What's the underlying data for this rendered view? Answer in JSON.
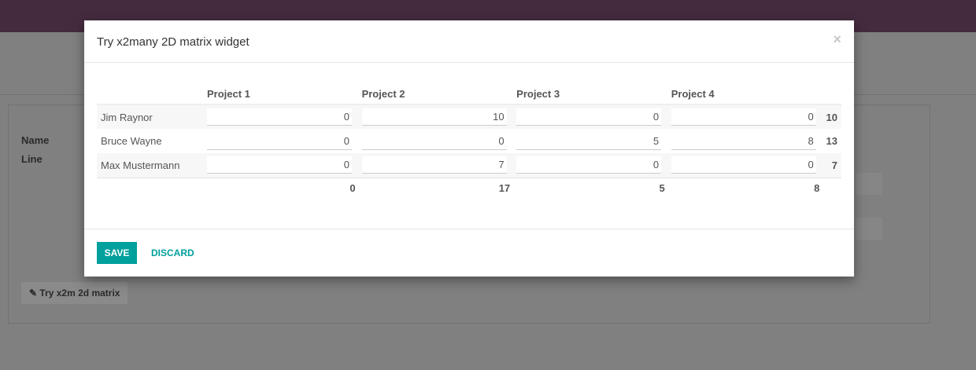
{
  "background": {
    "labels": [
      "Name",
      "Line"
    ],
    "button": "Try x2m 2d matrix"
  },
  "modal": {
    "title": "Try x2many 2D matrix widget",
    "close": "×",
    "columns": [
      "Project 1",
      "Project 2",
      "Project 3",
      "Project 4"
    ],
    "rows": [
      {
        "name": "Jim Raynor",
        "values": [
          "0",
          "10",
          "0",
          "0"
        ],
        "total": "10"
      },
      {
        "name": "Bruce Wayne",
        "values": [
          "0",
          "0",
          "5",
          "8"
        ],
        "total": "13"
      },
      {
        "name": "Max Mustermann",
        "values": [
          "0",
          "7",
          "0",
          "0"
        ],
        "total": "7"
      }
    ],
    "column_totals": [
      "0",
      "17",
      "5",
      "8"
    ],
    "save": "SAVE",
    "discard": "DISCARD"
  },
  "colors": {
    "accent": "#00a09d",
    "navbar": "#452b3e"
  }
}
